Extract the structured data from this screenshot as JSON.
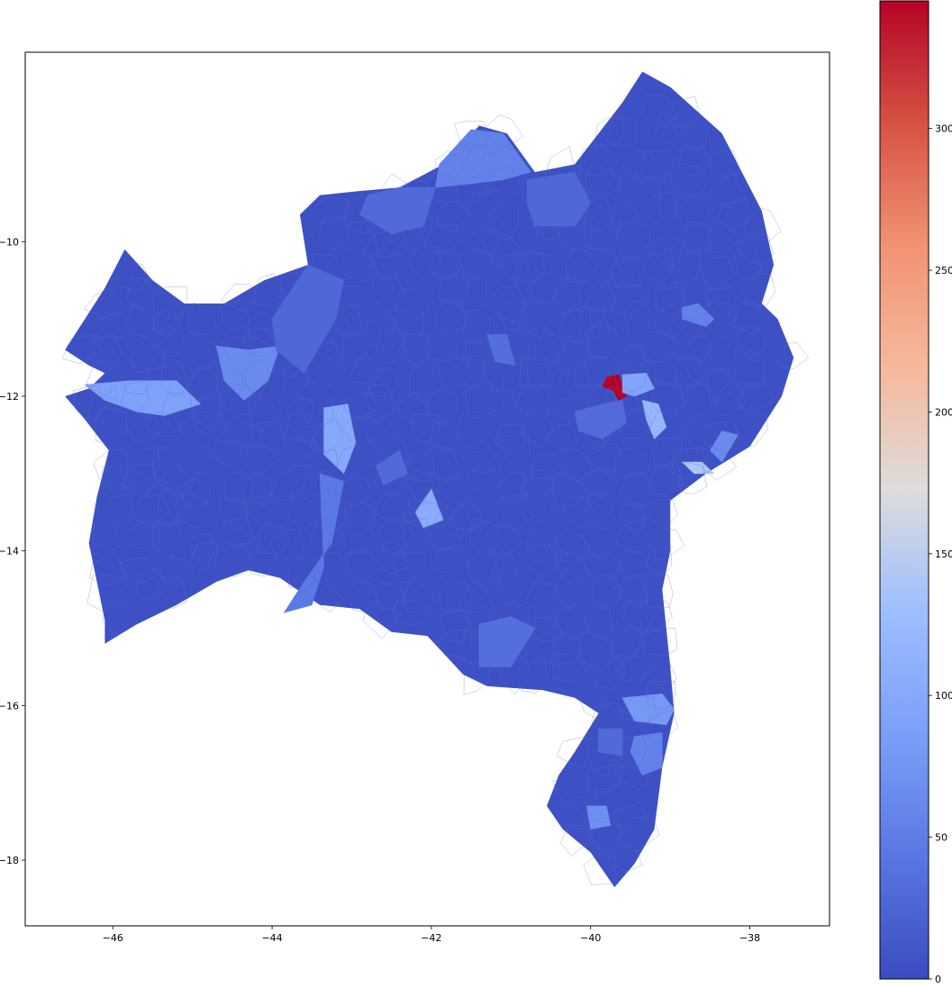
{
  "chart_data": {
    "type": "choropleth",
    "title": "",
    "xlabel": "",
    "ylabel": "",
    "xlim": [
      -47.1,
      -37.0
    ],
    "ylim": [
      -18.85,
      -7.55
    ],
    "x_ticks": [
      -46,
      -44,
      -42,
      -40,
      -38
    ],
    "y_ticks": [
      -10,
      -12,
      -14,
      -16,
      -18
    ],
    "x_tick_labels": [
      "−46",
      "−44",
      "−42",
      "−40",
      "−38"
    ],
    "y_tick_labels": [
      "−10",
      "−12",
      "−14",
      "−16",
      "−18"
    ],
    "colormap": "coolwarm",
    "colorbar": {
      "min": 0,
      "max": 345,
      "ticks": [
        0,
        50,
        100,
        150,
        200,
        250,
        300
      ],
      "tick_labels": [
        "0",
        "50",
        "100",
        "150",
        "200",
        "250",
        "300"
      ]
    },
    "base_value": 5,
    "regions": [
      {
        "value": 5,
        "lonlat": [
          [
            -46.6,
            -11.4
          ],
          [
            -46.1,
            -10.6
          ],
          [
            -45.85,
            -10.1
          ],
          [
            -45.5,
            -10.5
          ],
          [
            -45.1,
            -10.8
          ],
          [
            -44.6,
            -10.8
          ],
          [
            -44.1,
            -10.5
          ],
          [
            -43.55,
            -10.3
          ],
          [
            -43.65,
            -9.65
          ],
          [
            -43.4,
            -9.4
          ],
          [
            -42.95,
            -9.35
          ],
          [
            -42.4,
            -9.3
          ],
          [
            -41.85,
            -9.0
          ],
          [
            -41.4,
            -8.5
          ],
          [
            -41.05,
            -8.6
          ],
          [
            -40.7,
            -9.1
          ],
          [
            -40.2,
            -9.0
          ],
          [
            -39.6,
            -8.2
          ],
          [
            -39.35,
            -7.8
          ],
          [
            -39.0,
            -8.0
          ],
          [
            -38.35,
            -8.6
          ],
          [
            -38.1,
            -9.1
          ],
          [
            -37.85,
            -9.6
          ],
          [
            -37.7,
            -10.3
          ],
          [
            -37.85,
            -10.8
          ],
          [
            -37.65,
            -11.0
          ],
          [
            -37.45,
            -11.5
          ],
          [
            -37.6,
            -12.0
          ],
          [
            -38.0,
            -12.65
          ],
          [
            -38.55,
            -13.0
          ],
          [
            -39.0,
            -13.35
          ],
          [
            -39.0,
            -14.0
          ],
          [
            -39.1,
            -14.5
          ],
          [
            -39.0,
            -15.5
          ],
          [
            -38.95,
            -16.1
          ],
          [
            -39.1,
            -16.8
          ],
          [
            -39.2,
            -17.6
          ],
          [
            -39.45,
            -18.05
          ],
          [
            -39.7,
            -18.35
          ],
          [
            -40.0,
            -17.9
          ],
          [
            -40.35,
            -17.6
          ],
          [
            -40.55,
            -17.3
          ],
          [
            -40.4,
            -16.9
          ],
          [
            -40.2,
            -16.6
          ],
          [
            -39.9,
            -16.1
          ],
          [
            -40.2,
            -15.9
          ],
          [
            -40.6,
            -15.8
          ],
          [
            -41.3,
            -15.75
          ],
          [
            -41.6,
            -15.6
          ],
          [
            -42.05,
            -15.1
          ],
          [
            -42.5,
            -15.05
          ],
          [
            -42.9,
            -14.75
          ],
          [
            -43.4,
            -14.7
          ],
          [
            -43.9,
            -14.35
          ],
          [
            -44.3,
            -14.25
          ],
          [
            -44.7,
            -14.4
          ],
          [
            -45.2,
            -14.7
          ],
          [
            -45.7,
            -14.95
          ],
          [
            -46.1,
            -15.2
          ],
          [
            -46.1,
            -14.9
          ],
          [
            -46.2,
            -14.4
          ],
          [
            -46.3,
            -13.9
          ],
          [
            -46.2,
            -13.3
          ],
          [
            -46.05,
            -12.7
          ],
          [
            -46.35,
            -12.3
          ],
          [
            -46.6,
            -12.0
          ],
          [
            -46.3,
            -11.9
          ],
          [
            -46.1,
            -11.7
          ],
          [
            -46.3,
            -11.6
          ],
          [
            -46.6,
            -11.4
          ]
        ]
      },
      {
        "value": 55,
        "lonlat": [
          [
            -41.9,
            -9.0
          ],
          [
            -41.5,
            -8.55
          ],
          [
            -41.1,
            -8.6
          ],
          [
            -40.75,
            -9.1
          ],
          [
            -41.1,
            -9.2
          ],
          [
            -41.5,
            -9.25
          ],
          [
            -41.95,
            -9.3
          ],
          [
            -41.9,
            -9.0
          ]
        ]
      },
      {
        "value": 30,
        "lonlat": [
          [
            -42.8,
            -9.4
          ],
          [
            -42.4,
            -9.3
          ],
          [
            -41.95,
            -9.3
          ],
          [
            -42.1,
            -9.8
          ],
          [
            -42.5,
            -9.9
          ],
          [
            -42.9,
            -9.65
          ],
          [
            -42.8,
            -9.4
          ]
        ]
      },
      {
        "value": 28,
        "lonlat": [
          [
            -40.8,
            -9.2
          ],
          [
            -40.2,
            -9.1
          ],
          [
            -40.0,
            -9.5
          ],
          [
            -40.2,
            -9.8
          ],
          [
            -40.7,
            -9.8
          ],
          [
            -40.8,
            -9.5
          ],
          [
            -40.8,
            -9.2
          ]
        ]
      },
      {
        "value": 90,
        "lonlat": [
          [
            -46.35,
            -11.85
          ],
          [
            -45.8,
            -11.8
          ],
          [
            -45.2,
            -11.8
          ],
          [
            -44.9,
            -12.1
          ],
          [
            -45.35,
            -12.25
          ],
          [
            -45.7,
            -12.2
          ],
          [
            -46.1,
            -12.05
          ],
          [
            -46.35,
            -11.85
          ]
        ]
      },
      {
        "value": 65,
        "lonlat": [
          [
            -44.7,
            -11.35
          ],
          [
            -44.3,
            -11.4
          ],
          [
            -43.9,
            -11.35
          ],
          [
            -44.05,
            -11.8
          ],
          [
            -44.35,
            -12.05
          ],
          [
            -44.6,
            -11.8
          ],
          [
            -44.7,
            -11.35
          ]
        ]
      },
      {
        "value": 28,
        "lonlat": [
          [
            -44.0,
            -11.0
          ],
          [
            -43.55,
            -10.3
          ],
          [
            -43.1,
            -10.5
          ],
          [
            -43.2,
            -11.0
          ],
          [
            -43.6,
            -11.7
          ],
          [
            -43.95,
            -11.4
          ],
          [
            -44.0,
            -11.0
          ]
        ]
      },
      {
        "value": 100,
        "lonlat": [
          [
            -43.35,
            -12.15
          ],
          [
            -43.05,
            -12.1
          ],
          [
            -42.95,
            -12.6
          ],
          [
            -43.1,
            -13.0
          ],
          [
            -43.35,
            -12.75
          ],
          [
            -43.35,
            -12.15
          ]
        ]
      },
      {
        "value": 105,
        "lonlat": [
          [
            -42.2,
            -13.5
          ],
          [
            -42.0,
            -13.2
          ],
          [
            -41.85,
            -13.6
          ],
          [
            -42.1,
            -13.7
          ],
          [
            -42.2,
            -13.5
          ]
        ]
      },
      {
        "value": 45,
        "lonlat": [
          [
            -43.4,
            -13.0
          ],
          [
            -43.1,
            -13.1
          ],
          [
            -43.25,
            -13.9
          ],
          [
            -43.6,
            -14.4
          ],
          [
            -43.85,
            -14.8
          ],
          [
            -43.5,
            -14.7
          ],
          [
            -43.35,
            -14.2
          ],
          [
            -43.4,
            -13.0
          ]
        ]
      },
      {
        "value": 30,
        "lonlat": [
          [
            -42.7,
            -12.9
          ],
          [
            -42.4,
            -12.7
          ],
          [
            -42.3,
            -13.0
          ],
          [
            -42.6,
            -13.15
          ],
          [
            -42.7,
            -12.9
          ]
        ]
      },
      {
        "value": 35,
        "lonlat": [
          [
            -41.3,
            -11.2
          ],
          [
            -41.05,
            -11.2
          ],
          [
            -40.95,
            -11.6
          ],
          [
            -41.2,
            -11.55
          ],
          [
            -41.3,
            -11.2
          ]
        ]
      },
      {
        "value": 35,
        "lonlat": [
          [
            -41.4,
            -14.95
          ],
          [
            -41.0,
            -14.85
          ],
          [
            -40.7,
            -15.0
          ],
          [
            -41.0,
            -15.5
          ],
          [
            -41.4,
            -15.5
          ],
          [
            -41.4,
            -14.95
          ]
        ]
      },
      {
        "value": 32,
        "lonlat": [
          [
            -40.2,
            -12.2
          ],
          [
            -39.85,
            -12.1
          ],
          [
            -39.6,
            -12.05
          ],
          [
            -39.55,
            -12.35
          ],
          [
            -39.85,
            -12.55
          ],
          [
            -40.15,
            -12.45
          ],
          [
            -40.2,
            -12.2
          ]
        ]
      },
      {
        "value": 345,
        "lonlat": [
          [
            -39.8,
            -11.75
          ],
          [
            -39.65,
            -11.72
          ],
          [
            -39.6,
            -11.85
          ],
          [
            -39.55,
            -12.0
          ],
          [
            -39.65,
            -12.05
          ],
          [
            -39.72,
            -11.92
          ],
          [
            -39.85,
            -11.88
          ],
          [
            -39.8,
            -11.75
          ]
        ]
      },
      {
        "value": 95,
        "lonlat": [
          [
            -39.6,
            -11.72
          ],
          [
            -39.3,
            -11.7
          ],
          [
            -39.2,
            -11.9
          ],
          [
            -39.45,
            -12.0
          ],
          [
            -39.6,
            -11.95
          ],
          [
            -39.6,
            -11.72
          ]
        ]
      },
      {
        "value": 120,
        "lonlat": [
          [
            -39.35,
            -12.05
          ],
          [
            -39.15,
            -12.1
          ],
          [
            -39.05,
            -12.4
          ],
          [
            -39.2,
            -12.55
          ],
          [
            -39.3,
            -12.3
          ],
          [
            -39.35,
            -12.05
          ]
        ]
      },
      {
        "value": 140,
        "lonlat": [
          [
            -38.85,
            -12.85
          ],
          [
            -38.6,
            -12.85
          ],
          [
            -38.45,
            -13.0
          ],
          [
            -38.7,
            -13.0
          ],
          [
            -38.85,
            -12.85
          ]
        ]
      },
      {
        "value": 65,
        "lonlat": [
          [
            -38.35,
            -12.45
          ],
          [
            -38.15,
            -12.5
          ],
          [
            -38.35,
            -12.85
          ],
          [
            -38.5,
            -12.7
          ],
          [
            -38.35,
            -12.45
          ]
        ]
      },
      {
        "value": 55,
        "lonlat": [
          [
            -38.85,
            -10.85
          ],
          [
            -38.65,
            -10.8
          ],
          [
            -38.45,
            -11.0
          ],
          [
            -38.55,
            -11.1
          ],
          [
            -38.85,
            -11.0
          ],
          [
            -38.85,
            -10.85
          ]
        ]
      },
      {
        "value": 80,
        "lonlat": [
          [
            -39.6,
            -15.9
          ],
          [
            -39.1,
            -15.85
          ],
          [
            -38.95,
            -16.05
          ],
          [
            -39.05,
            -16.25
          ],
          [
            -39.45,
            -16.2
          ],
          [
            -39.6,
            -15.9
          ]
        ]
      },
      {
        "value": 55,
        "lonlat": [
          [
            -39.45,
            -16.4
          ],
          [
            -39.1,
            -16.35
          ],
          [
            -39.1,
            -16.8
          ],
          [
            -39.35,
            -16.9
          ],
          [
            -39.5,
            -16.6
          ],
          [
            -39.45,
            -16.4
          ]
        ]
      },
      {
        "value": 70,
        "lonlat": [
          [
            -40.05,
            -17.3
          ],
          [
            -39.8,
            -17.3
          ],
          [
            -39.75,
            -17.55
          ],
          [
            -40.0,
            -17.6
          ],
          [
            -40.05,
            -17.3
          ]
        ]
      },
      {
        "value": 30,
        "lonlat": [
          [
            -39.9,
            -16.3
          ],
          [
            -39.6,
            -16.3
          ],
          [
            -39.6,
            -16.65
          ],
          [
            -39.9,
            -16.6
          ],
          [
            -39.9,
            -16.3
          ]
        ]
      }
    ]
  }
}
